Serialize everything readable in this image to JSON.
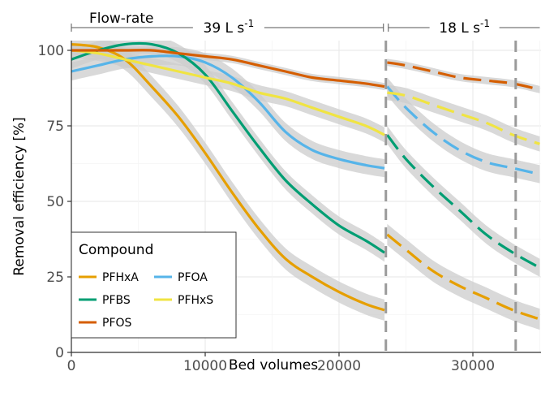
{
  "chart_data": {
    "type": "line",
    "xlabel": "Bed volumes",
    "ylabel": "Removal efficiency [%]",
    "xlim": [
      0,
      35000
    ],
    "ylim": [
      0,
      103
    ],
    "xticks": [
      0,
      10000,
      20000,
      30000
    ],
    "xtick_labels": [
      "0",
      "10000",
      "20000",
      "30000"
    ],
    "yticks": [
      0,
      25,
      50,
      75,
      100
    ],
    "ytick_labels": [
      "0",
      "25",
      "50",
      "75",
      "100"
    ],
    "grid": true,
    "legend": {
      "title": "Compound",
      "position": "bottom-left",
      "entries": [
        "PFHxA",
        "PFOA",
        "PFBS",
        "PFHxS",
        "PFOS"
      ]
    },
    "flow_rate": {
      "label": "Flow-rate",
      "segments": [
        {
          "label_value": "39 L s",
          "label_exp": "-1",
          "x_start": 0,
          "x_end": 23500
        },
        {
          "label_value": "18 L s",
          "label_exp": "-1",
          "x_start": 23500,
          "x_end": 35000
        }
      ]
    },
    "vlines": [
      23500,
      33200
    ],
    "series": [
      {
        "name": "PFHxA",
        "color": "#E69F00",
        "band": 3.5,
        "phase1": [
          [
            0,
            102
          ],
          [
            2000,
            101
          ],
          [
            4000,
            97
          ],
          [
            6000,
            88
          ],
          [
            8000,
            78
          ],
          [
            10000,
            66
          ],
          [
            12000,
            53
          ],
          [
            14000,
            41
          ],
          [
            16000,
            31
          ],
          [
            18000,
            25
          ],
          [
            20000,
            20
          ],
          [
            22000,
            16
          ],
          [
            23400,
            14
          ]
        ],
        "phase2": [
          [
            23600,
            39
          ],
          [
            25000,
            34
          ],
          [
            27000,
            27
          ],
          [
            29000,
            22
          ],
          [
            31000,
            18
          ],
          [
            33000,
            14
          ],
          [
            35000,
            11
          ]
        ]
      },
      {
        "name": "PFOA",
        "color": "#56B4E9",
        "band": 3.0,
        "phase1": [
          [
            0,
            93
          ],
          [
            2000,
            95
          ],
          [
            4000,
            97
          ],
          [
            6000,
            98
          ],
          [
            8000,
            98
          ],
          [
            10000,
            96
          ],
          [
            12000,
            91
          ],
          [
            14000,
            83
          ],
          [
            16000,
            73
          ],
          [
            18000,
            67
          ],
          [
            20000,
            64
          ],
          [
            22000,
            62
          ],
          [
            23400,
            61
          ]
        ],
        "phase2": [
          [
            23600,
            88
          ],
          [
            25000,
            81
          ],
          [
            27000,
            73
          ],
          [
            29000,
            67
          ],
          [
            31000,
            63
          ],
          [
            33000,
            61
          ],
          [
            35000,
            59
          ]
        ]
      },
      {
        "name": "PFBS",
        "color": "#009E73",
        "band": 3.0,
        "phase1": [
          [
            0,
            97
          ],
          [
            2000,
            100
          ],
          [
            4000,
            102
          ],
          [
            6000,
            102
          ],
          [
            8000,
            99
          ],
          [
            10000,
            92
          ],
          [
            12000,
            80
          ],
          [
            14000,
            68
          ],
          [
            16000,
            57
          ],
          [
            18000,
            49
          ],
          [
            20000,
            42
          ],
          [
            22000,
            37
          ],
          [
            23400,
            33
          ]
        ],
        "phase2": [
          [
            23600,
            72
          ],
          [
            25000,
            64
          ],
          [
            27000,
            55
          ],
          [
            29000,
            47
          ],
          [
            31000,
            39
          ],
          [
            33000,
            33
          ],
          [
            35000,
            28
          ]
        ]
      },
      {
        "name": "PFHxS",
        "color": "#F0E442",
        "band": 2.5,
        "phase1": [
          [
            0,
            100
          ],
          [
            2000,
            99
          ],
          [
            4000,
            97
          ],
          [
            6000,
            95
          ],
          [
            8000,
            93
          ],
          [
            10000,
            91
          ],
          [
            12000,
            89
          ],
          [
            14000,
            86
          ],
          [
            16000,
            84
          ],
          [
            18000,
            81
          ],
          [
            20000,
            78
          ],
          [
            22000,
            75
          ],
          [
            23400,
            72
          ]
        ],
        "phase2": [
          [
            23600,
            86
          ],
          [
            25000,
            85
          ],
          [
            27000,
            82
          ],
          [
            29000,
            79
          ],
          [
            31000,
            76
          ],
          [
            33000,
            72
          ],
          [
            35000,
            69
          ]
        ]
      },
      {
        "name": "PFOS",
        "color": "#D55E00",
        "band": 1.2,
        "phase1": [
          [
            0,
            100
          ],
          [
            2000,
            100
          ],
          [
            4000,
            100
          ],
          [
            6000,
            100
          ],
          [
            8000,
            99
          ],
          [
            10000,
            98
          ],
          [
            12000,
            97
          ],
          [
            14000,
            95
          ],
          [
            16000,
            93
          ],
          [
            18000,
            91
          ],
          [
            20000,
            90
          ],
          [
            22000,
            89
          ],
          [
            23400,
            88
          ]
        ],
        "phase2": [
          [
            23600,
            96
          ],
          [
            25000,
            95
          ],
          [
            27000,
            93
          ],
          [
            29000,
            91
          ],
          [
            31000,
            90
          ],
          [
            33000,
            89
          ],
          [
            35000,
            87
          ]
        ]
      }
    ]
  }
}
